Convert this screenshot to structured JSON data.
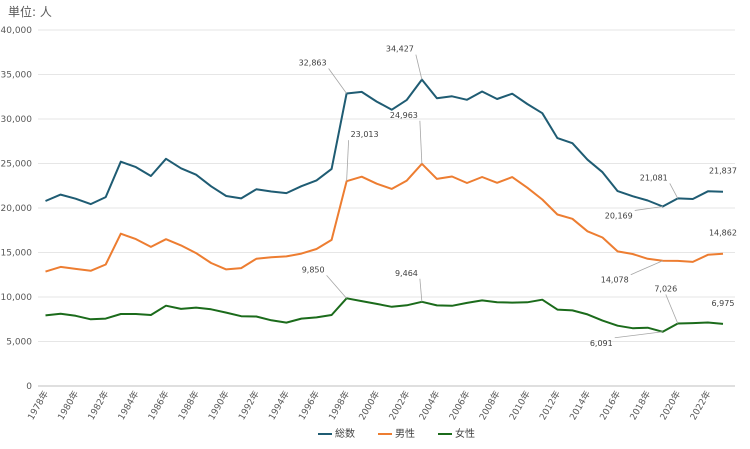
{
  "unit_label": "単位: 人",
  "chart_data": {
    "type": "line",
    "x": [
      1978,
      1979,
      1980,
      1981,
      1982,
      1983,
      1984,
      1985,
      1986,
      1987,
      1988,
      1989,
      1990,
      1991,
      1992,
      1993,
      1994,
      1995,
      1996,
      1997,
      1998,
      1999,
      2000,
      2001,
      2002,
      2003,
      2004,
      2005,
      2006,
      2007,
      2008,
      2009,
      2010,
      2011,
      2012,
      2013,
      2014,
      2015,
      2016,
      2017,
      2018,
      2019,
      2020,
      2021,
      2022,
      2023
    ],
    "x_tick_labels": [
      "1978年",
      "1980年",
      "1982年",
      "1984年",
      "1986年",
      "1988年",
      "1990年",
      "1992年",
      "1994年",
      "1996年",
      "1998年",
      "2000年",
      "2002年",
      "2004年",
      "2006年",
      "2008年",
      "2010年",
      "2012年",
      "2014年",
      "2016年",
      "2018年",
      "2020年",
      "2022年"
    ],
    "x_tick_values": [
      1978,
      1980,
      1982,
      1984,
      1986,
      1988,
      1990,
      1992,
      1994,
      1996,
      1998,
      2000,
      2002,
      2004,
      2006,
      2008,
      2010,
      2012,
      2014,
      2016,
      2018,
      2020,
      2022
    ],
    "y_tick_labels": [
      "0",
      "5,000",
      "10,000",
      "15,000",
      "20,000",
      "25,000",
      "30,000",
      "35,000",
      "40,000"
    ],
    "ylim": [
      0,
      40000
    ],
    "grid": true,
    "legend_position": "bottom",
    "series": [
      {
        "name": "総数",
        "color": "#1f5c73",
        "values": [
          20788,
          21503,
          21048,
          20434,
          21228,
          25202,
          24596,
          23599,
          25524,
          24460,
          23742,
          22436,
          21346,
          21084,
          22104,
          21851,
          21679,
          22445,
          23104,
          24391,
          32863,
          33048,
          31957,
          31042,
          32143,
          34427,
          32325,
          32552,
          32155,
          33093,
          32249,
          32845,
          31690,
          30651,
          27858,
          27283,
          25427,
          24025,
          21897,
          21321,
          20840,
          20169,
          21081,
          21007,
          21881,
          21837
        ]
      },
      {
        "name": "男性",
        "color": "#ed7d31",
        "values": [
          12859,
          13386,
          13155,
          12942,
          13654,
          17116,
          16502,
          15624,
          16497,
          15802,
          14934,
          13818,
          13102,
          13242,
          14296,
          14468,
          14560,
          14874,
          15393,
          16416,
          23013,
          23512,
          22727,
          22144,
          23080,
          24963,
          23272,
          23540,
          22813,
          23478,
          22831,
          23472,
          22283,
          20955,
          19273,
          18787,
          17386,
          16681,
          15121,
          14826,
          14290,
          14078,
          14055,
          13939,
          14746,
          14862
        ]
      },
      {
        "name": "女性",
        "color": "#1b6b1b",
        "values": [
          7929,
          8117,
          7893,
          7492,
          7574,
          8086,
          8094,
          7975,
          9027,
          8658,
          8808,
          8618,
          8244,
          7842,
          7808,
          7383,
          7119,
          7571,
          7711,
          7975,
          9850,
          9536,
          9230,
          8898,
          9063,
          9464,
          9053,
          9012,
          9342,
          9615,
          9418,
          9373,
          9407,
          9696,
          8585,
          8496,
          8041,
          7344,
          6776,
          6495,
          6550,
          6091,
          7026,
          7068,
          7135,
          6975
        ]
      }
    ],
    "annotations": [
      {
        "series": 0,
        "x": 1998,
        "text": "32,863"
      },
      {
        "series": 0,
        "x": 2003,
        "text": "34,427"
      },
      {
        "series": 0,
        "x": 2019,
        "text": "20,169"
      },
      {
        "series": 0,
        "x": 2020,
        "text": "21,081"
      },
      {
        "series": 0,
        "x": 2023,
        "text": "21,837"
      },
      {
        "series": 1,
        "x": 1998,
        "text": "23,013"
      },
      {
        "series": 1,
        "x": 2003,
        "text": "24,963"
      },
      {
        "series": 1,
        "x": 2019,
        "text": "14,078"
      },
      {
        "series": 1,
        "x": 2023,
        "text": "14,862"
      },
      {
        "series": 2,
        "x": 1998,
        "text": "9,850"
      },
      {
        "series": 2,
        "x": 2003,
        "text": "9,464"
      },
      {
        "series": 2,
        "x": 2019,
        "text": "6,091"
      },
      {
        "series": 2,
        "x": 2020,
        "text": "7,026"
      },
      {
        "series": 2,
        "x": 2023,
        "text": "6,975"
      }
    ]
  }
}
